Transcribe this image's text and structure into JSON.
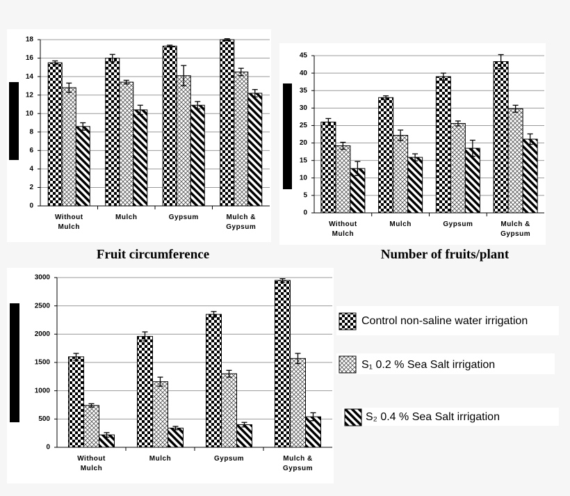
{
  "chart_data": [
    {
      "type": "bar",
      "title": "Fruit circumference",
      "categories": [
        "Without Mulch",
        "Mulch",
        "Gypsum",
        "Mulch & Gypsum"
      ],
      "series": [
        {
          "pattern": "checker",
          "values": [
            15.5,
            16.0,
            17.3,
            18.0
          ],
          "errors": [
            0.2,
            0.4,
            0.1,
            0.1
          ]
        },
        {
          "pattern": "crosshatch",
          "values": [
            12.8,
            13.4,
            14.1,
            14.5
          ],
          "errors": [
            0.5,
            0.2,
            1.1,
            0.4
          ]
        },
        {
          "pattern": "diagonal",
          "values": [
            8.6,
            10.4,
            10.9,
            12.2
          ],
          "errors": [
            0.4,
            0.5,
            0.4,
            0.4
          ]
        }
      ],
      "ylim": [
        0,
        18
      ],
      "yticks": [
        0,
        2,
        4,
        6,
        8,
        10,
        12,
        14,
        16,
        18
      ],
      "grid": true
    },
    {
      "type": "bar",
      "title": "Number of fruits/plant",
      "categories": [
        "Without Mulch",
        "Mulch",
        "Gypsum",
        "Mulch & Gypsum"
      ],
      "series": [
        {
          "pattern": "checker",
          "values": [
            26,
            33,
            39,
            43.3
          ],
          "errors": [
            1,
            0.5,
            1,
            2
          ]
        },
        {
          "pattern": "crosshatch",
          "values": [
            19.2,
            22.2,
            25.6,
            29.8
          ],
          "errors": [
            1,
            1.5,
            0.7,
            1
          ]
        },
        {
          "pattern": "diagonal",
          "values": [
            12.7,
            15.9,
            18.5,
            21.1
          ],
          "errors": [
            2,
            1,
            2.3,
            1.5
          ]
        }
      ],
      "ylim": [
        0,
        45
      ],
      "yticks": [
        0,
        5,
        10,
        15,
        20,
        25,
        30,
        35,
        40,
        45
      ],
      "grid": true
    },
    {
      "type": "bar",
      "categories": [
        "Without Mulch",
        "Mulch",
        "Gypsum",
        "Mulch & Gypsum"
      ],
      "series": [
        {
          "name": "Control non-saline water irrigation",
          "pattern": "checker",
          "values": [
            1600,
            1960,
            2350,
            2950
          ],
          "errors": [
            60,
            80,
            50,
            30
          ]
        },
        {
          "name": "S₁ 0.2 % Sea Salt irrigation",
          "pattern": "crosshatch",
          "values": [
            740,
            1160,
            1300,
            1570
          ],
          "errors": [
            30,
            80,
            60,
            90
          ]
        },
        {
          "name": "S₂ 0.4 % Sea Salt irrigation",
          "pattern": "diagonal",
          "values": [
            220,
            340,
            400,
            540
          ],
          "errors": [
            40,
            30,
            40,
            70
          ]
        }
      ],
      "ylim": [
        0,
        3000
      ],
      "yticks": [
        0,
        500,
        1000,
        1500,
        2000,
        2500,
        3000
      ],
      "grid": true
    }
  ]
}
